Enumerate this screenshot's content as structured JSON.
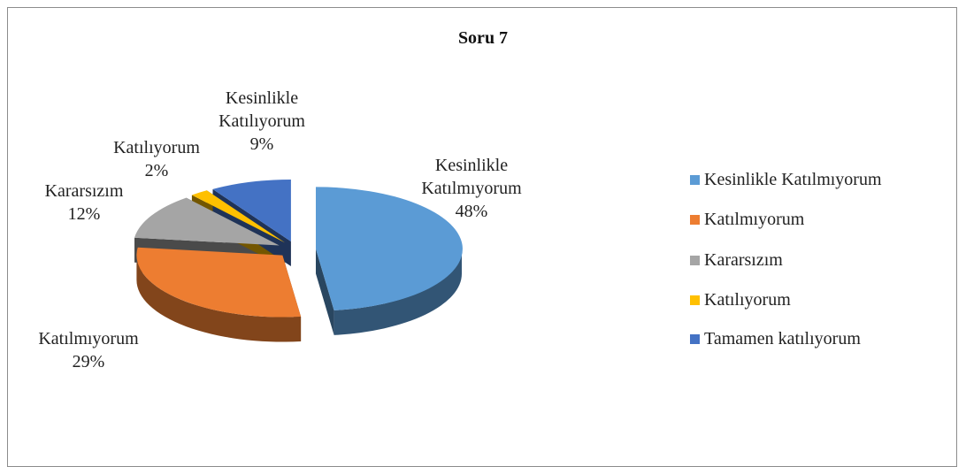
{
  "chart_data": {
    "type": "pie",
    "title": "Soru 7",
    "categories": [
      "Kesinlikle Katılmıyorum",
      "Katılmıyorum",
      "Kararsızım",
      "Katılıyorum",
      "Tamamen katılıyorum"
    ],
    "slice_labels": [
      "Kesinlikle Katılmıyorum",
      "Katılmıyorum",
      "Kararsızım",
      "Katılıyorum",
      "Kesinlikle Katılıyorum"
    ],
    "values": [
      48,
      29,
      12,
      2,
      9
    ],
    "value_labels": [
      "48%",
      "29%",
      "12%",
      "2%",
      "9%"
    ],
    "colors": [
      "#5b9bd5",
      "#ed7d31",
      "#a5a5a5",
      "#ffc000",
      "#4472c4"
    ]
  }
}
